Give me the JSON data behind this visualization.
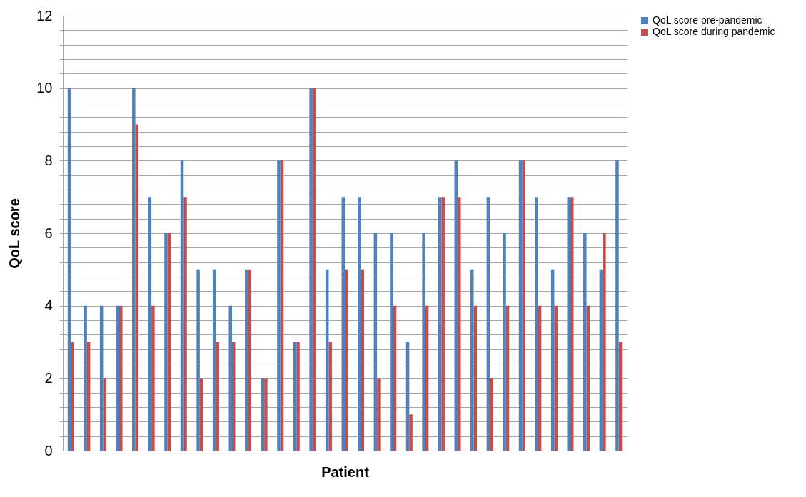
{
  "chart_data": {
    "type": "bar",
    "xlabel": "Patient",
    "ylabel": "QoL score",
    "categories": [
      null,
      null,
      null,
      null,
      null,
      null,
      null,
      null,
      null,
      null,
      null,
      null,
      null,
      null,
      null,
      null,
      null,
      null,
      null,
      null,
      null,
      null,
      null,
      null,
      null,
      null,
      null,
      null,
      null,
      null,
      null,
      null,
      null,
      null,
      null
    ],
    "series": [
      {
        "name": "QoL score pre-pandemic",
        "color": "#4f81bd",
        "values": [
          10,
          4,
          4,
          4,
          10,
          7,
          6,
          8,
          5,
          5,
          4,
          5,
          2,
          8,
          3,
          10,
          5,
          7,
          7,
          6,
          6,
          3,
          6,
          7,
          8,
          5,
          7,
          6,
          8,
          7,
          5,
          7,
          6,
          5,
          8
        ]
      },
      {
        "name": "QoL score during pandemic",
        "color": "#c0504d",
        "values": [
          3,
          3,
          2,
          4,
          9,
          4,
          6,
          7,
          2,
          3,
          3,
          5,
          2,
          8,
          3,
          10,
          3,
          5,
          5,
          2,
          4,
          1,
          4,
          7,
          7,
          4,
          2,
          4,
          8,
          4,
          4,
          7,
          4,
          6,
          3
        ]
      }
    ],
    "ylim": [
      0,
      12
    ],
    "yticks": [
      0,
      {
        "value": 0.4,
        "label": null
      },
      {
        "value": 0.8,
        "label": null
      },
      {
        "value": 1.2,
        "label": null
      },
      {
        "value": 1.6,
        "label": null
      },
      2,
      {
        "value": 2.4,
        "label": null
      },
      {
        "value": 2.8,
        "label": null
      },
      {
        "value": 3.2,
        "label": null
      },
      {
        "value": 3.6,
        "label": null
      },
      4,
      {
        "value": 4.4,
        "label": null
      },
      {
        "value": 4.8,
        "label": null
      },
      {
        "value": 5.2,
        "label": null
      },
      {
        "value": 5.6,
        "label": null
      },
      6,
      {
        "value": 6.4,
        "label": null
      },
      {
        "value": 6.8,
        "label": null
      },
      {
        "value": 7.2,
        "label": null
      },
      {
        "value": 7.6,
        "label": null
      },
      8,
      {
        "value": 8.4,
        "label": null
      },
      {
        "value": 8.8,
        "label": null
      },
      {
        "value": 9.2,
        "label": null
      },
      {
        "value": 9.6,
        "label": null
      },
      10,
      {
        "value": 10.4,
        "label": null
      },
      {
        "value": 10.8,
        "label": null
      },
      {
        "value": 11.2,
        "label": null
      },
      {
        "value": 11.6,
        "label": null
      },
      12
    ],
    "grid": "y",
    "legend": "right",
    "tick_labels": "y"
  }
}
